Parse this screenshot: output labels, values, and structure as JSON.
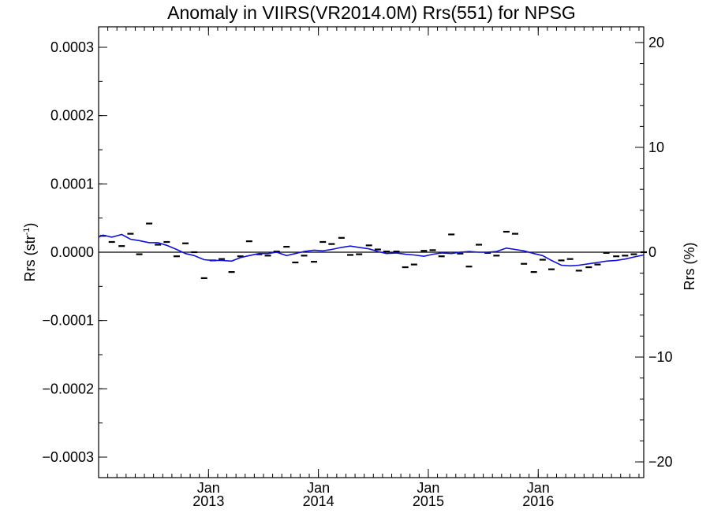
{
  "chart_data": {
    "type": "line",
    "title": "Anomaly in VIIRS(VR2014.0M) Rrs(551) for NPSG",
    "ylabel": "Rrs (str",
    "ylabel_sup": "-1",
    "ylabel_close": ")",
    "y2label": "Rrs (%)",
    "grid": false,
    "xlim": [
      2012.0,
      2016.96
    ],
    "ylim": [
      -0.00033,
      0.00033
    ],
    "y2lim": [
      -21.5,
      21.5
    ],
    "x_ticks": [
      {
        "value": 2013.0,
        "month": "Jan",
        "year": "2013"
      },
      {
        "value": 2014.0,
        "month": "Jan",
        "year": "2014"
      },
      {
        "value": 2015.0,
        "month": "Jan",
        "year": "2015"
      },
      {
        "value": 2016.0,
        "month": "Jan",
        "year": "2016"
      }
    ],
    "y_ticks": [
      {
        "value": 0.0003,
        "label": "0.0003"
      },
      {
        "value": 0.0002,
        "label": "0.0002"
      },
      {
        "value": 0.0001,
        "label": "0.0001"
      },
      {
        "value": 0.0,
        "label": "0.0000"
      },
      {
        "value": -0.0001,
        "label": "−0.0001"
      },
      {
        "value": -0.0002,
        "label": "−0.0002"
      },
      {
        "value": -0.0003,
        "label": "−0.0003"
      }
    ],
    "y2_ticks": [
      {
        "value": 20,
        "label": "20"
      },
      {
        "value": 10,
        "label": "10"
      },
      {
        "value": 0,
        "label": "0"
      },
      {
        "value": -10,
        "label": "−10"
      },
      {
        "value": -20,
        "label": "−20"
      }
    ],
    "reference_line": 0,
    "series": [
      {
        "kind": "points",
        "color": "#000000",
        "x": [
          2012.04,
          2012.12,
          2012.21,
          2012.29,
          2012.37,
          2012.46,
          2012.54,
          2012.62,
          2012.71,
          2012.79,
          2012.87,
          2012.96,
          2013.04,
          2013.12,
          2013.21,
          2013.29,
          2013.37,
          2013.46,
          2013.54,
          2013.62,
          2013.71,
          2013.79,
          2013.87,
          2013.96,
          2014.04,
          2014.12,
          2014.21,
          2014.29,
          2014.37,
          2014.46,
          2014.54,
          2014.62,
          2014.71,
          2014.79,
          2014.87,
          2014.96,
          2015.04,
          2015.12,
          2015.21,
          2015.29,
          2015.37,
          2015.46,
          2015.54,
          2015.62,
          2015.71,
          2015.79,
          2015.87,
          2015.96,
          2016.04,
          2016.12,
          2016.21,
          2016.29,
          2016.37,
          2016.46,
          2016.54,
          2016.62,
          2016.71,
          2016.79,
          2016.87,
          2016.96
        ],
        "y": [
          2.4e-05,
          1.5e-05,
          9e-06,
          2.7e-05,
          -3e-06,
          4.2e-05,
          1.1e-05,
          1.5e-05,
          -6e-06,
          1.3e-05,
          0.0,
          -3.8e-05,
          -1.2e-05,
          -1e-05,
          -2.9e-05,
          -6e-06,
          1.6e-05,
          -3e-06,
          -5e-06,
          1e-06,
          8e-06,
          -1.5e-05,
          -5e-06,
          -1.4e-05,
          1.5e-05,
          1.2e-05,
          2.1e-05,
          -4e-06,
          -3e-06,
          1e-05,
          4e-06,
          1e-06,
          1e-06,
          -2.2e-05,
          -1.8e-05,
          2e-06,
          3e-06,
          -6e-06,
          2.6e-05,
          -2e-06,
          -2.1e-05,
          1.1e-05,
          -1e-06,
          -5e-06,
          3e-05,
          2.7e-05,
          -1.7e-05,
          -2.9e-05,
          -1.1e-05,
          -2.5e-05,
          -1.2e-05,
          -1e-05,
          -2.7e-05,
          -2.2e-05,
          -1.8e-05,
          -1e-06,
          -6e-06,
          -5e-06,
          -3e-06,
          0.0
        ]
      },
      {
        "kind": "line",
        "color": "#1010e0",
        "x": [
          2012.0,
          2012.04,
          2012.12,
          2012.21,
          2012.29,
          2012.37,
          2012.46,
          2012.54,
          2012.62,
          2012.71,
          2012.79,
          2012.87,
          2012.96,
          2013.04,
          2013.12,
          2013.21,
          2013.29,
          2013.37,
          2013.46,
          2013.54,
          2013.62,
          2013.71,
          2013.79,
          2013.87,
          2013.96,
          2014.04,
          2014.12,
          2014.21,
          2014.29,
          2014.37,
          2014.46,
          2014.54,
          2014.62,
          2014.71,
          2014.79,
          2014.87,
          2014.96,
          2015.04,
          2015.12,
          2015.21,
          2015.29,
          2015.37,
          2015.46,
          2015.54,
          2015.62,
          2015.71,
          2015.79,
          2015.87,
          2015.96,
          2016.04,
          2016.12,
          2016.21,
          2016.29,
          2016.37,
          2016.46,
          2016.54,
          2016.62,
          2016.71,
          2016.79,
          2016.87,
          2016.96
        ],
        "y": [
          2.2e-05,
          2.5e-05,
          2.2e-05,
          2.6e-05,
          1.9e-05,
          1.7e-05,
          1.4e-05,
          1.4e-05,
          1e-05,
          4e-06,
          -2e-06,
          -5e-06,
          -1.1e-05,
          -1.2e-05,
          -1.2e-05,
          -1.3e-05,
          -8e-06,
          -5e-06,
          -2e-06,
          -2e-06,
          0.0,
          -5e-06,
          -2e-06,
          1e-06,
          3e-06,
          2e-06,
          4e-06,
          7e-06,
          9e-06,
          7e-06,
          5e-06,
          1e-06,
          -2e-06,
          -1e-06,
          -3e-06,
          -4e-06,
          -6e-06,
          -3e-06,
          -1e-06,
          -2e-06,
          0.0,
          1e-06,
          0.0,
          0.0,
          1e-06,
          6e-06,
          4e-06,
          2e-06,
          -2e-06,
          -5e-06,
          -1.2e-05,
          -1.9e-05,
          -2e-05,
          -1.9e-05,
          -1.7e-05,
          -1.5e-05,
          -1.3e-05,
          -1.2e-05,
          -1e-05,
          -7e-06,
          -4e-06
        ]
      }
    ]
  }
}
